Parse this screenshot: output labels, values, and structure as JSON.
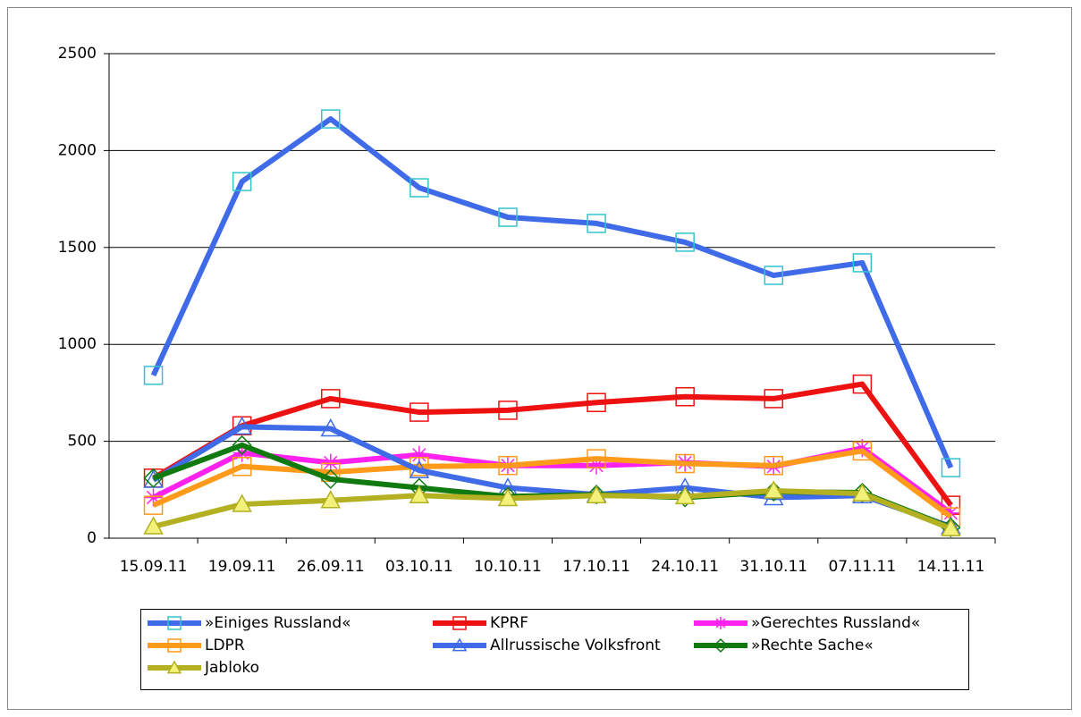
{
  "chart_data": {
    "type": "line",
    "categories": [
      "15.09.11",
      "19.09.11",
      "26.09.11",
      "03.10.11",
      "10.10.11",
      "17.10.11",
      "24.10.11",
      "31.10.11",
      "07.11.11",
      "14.11.11"
    ],
    "ylim": [
      0,
      2500
    ],
    "yticks": [
      0,
      500,
      1000,
      1500,
      2000,
      2500
    ],
    "grid": true,
    "series": [
      {
        "name": "»Einiges Russland«",
        "color": "#3f6ae8",
        "marker": "square",
        "marker_color": "#33c4cc",
        "values": [
          840,
          1840,
          2163,
          1808,
          1656,
          1624,
          1527,
          1356,
          1421,
          364
        ]
      },
      {
        "name": "KPRF",
        "color": "#ee1111",
        "marker": "square",
        "marker_color": "#ee1111",
        "values": [
          310,
          580,
          720,
          650,
          660,
          700,
          730,
          720,
          795,
          170
        ]
      },
      {
        "name": "»Gerechtes Russland«",
        "color": "#ff22ee",
        "marker": "star",
        "marker_color": "#ff22ee",
        "values": [
          210,
          440,
          390,
          430,
          375,
          375,
          390,
          370,
          465,
          130
        ]
      },
      {
        "name": "LDPR",
        "color": "#ff9a1a",
        "marker": "square",
        "marker_color": "#ff9a1a",
        "values": [
          170,
          370,
          340,
          370,
          375,
          410,
          385,
          375,
          450,
          110
        ]
      },
      {
        "name": "Allrussische Volksfront",
        "color": "#3f6ae8",
        "marker": "triangle",
        "marker_color": "#3f6ae8",
        "values": [
          300,
          575,
          565,
          350,
          260,
          225,
          260,
          210,
          220,
          60
        ]
      },
      {
        "name": "»Rechte Sache«",
        "color": "#107a10",
        "marker": "diamond",
        "marker_color": "#107a10",
        "values": [
          310,
          480,
          305,
          260,
          215,
          225,
          210,
          240,
          235,
          55
        ]
      },
      {
        "name": "Jabloko",
        "color": "#b3b022",
        "marker": "filled-triangle",
        "marker_color": "#f2f27a",
        "values": [
          60,
          175,
          195,
          220,
          205,
          220,
          215,
          245,
          230,
          50
        ]
      }
    ]
  }
}
